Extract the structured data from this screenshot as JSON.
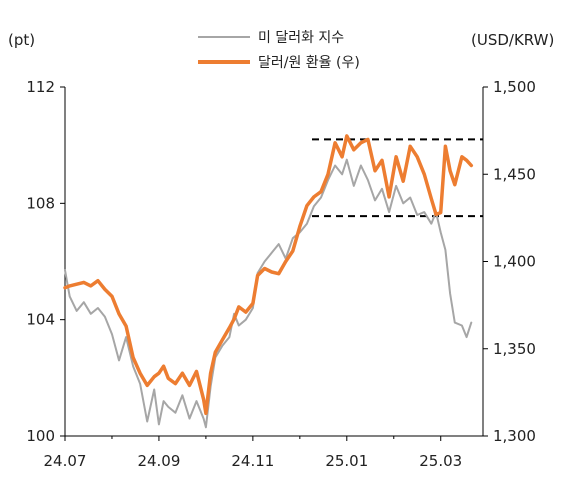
{
  "chart_data": {
    "type": "line",
    "left_unit": "(pt)",
    "right_unit": "(USD/KRW)",
    "x_tick_labels": [
      "24.07",
      "24.09",
      "24.11",
      "25.01",
      "25.03"
    ],
    "y_left_ticks": [
      "112",
      "108",
      "104",
      "100"
    ],
    "y_right_ticks": [
      "1,500",
      "1,450",
      "1,400",
      "1,350",
      "1,300"
    ],
    "ylim_left": [
      100,
      112
    ],
    "ylim_right": [
      1300,
      1500
    ],
    "legend_position": "top-center",
    "reference_lines_right_axis": [
      1470,
      1426
    ],
    "x_range_months": [
      0,
      8.9
    ],
    "series": [
      {
        "name": "미 달러화 지수",
        "axis": "left",
        "color": "#a6a6a6",
        "x": [
          0,
          0.1,
          0.25,
          0.4,
          0.55,
          0.7,
          0.85,
          1.0,
          1.15,
          1.3,
          1.45,
          1.6,
          1.75,
          1.9,
          2.0,
          2.1,
          2.2,
          2.35,
          2.5,
          2.65,
          2.8,
          2.95,
          3.0,
          3.1,
          3.2,
          3.35,
          3.5,
          3.6,
          3.7,
          3.85,
          4.0,
          4.1,
          4.25,
          4.4,
          4.55,
          4.7,
          4.85,
          5.0,
          5.15,
          5.3,
          5.45,
          5.6,
          5.75,
          5.9,
          6.0,
          6.15,
          6.3,
          6.45,
          6.6,
          6.75,
          6.9,
          7.05,
          7.2,
          7.35,
          7.5,
          7.65,
          7.8,
          7.9,
          8.0,
          8.1,
          8.2,
          8.3,
          8.45,
          8.55,
          8.65
        ],
        "values": [
          105.7,
          104.8,
          104.3,
          104.6,
          104.2,
          104.4,
          104.1,
          103.5,
          102.6,
          103.4,
          102.4,
          101.8,
          100.5,
          101.6,
          100.4,
          101.2,
          101.0,
          100.8,
          101.4,
          100.6,
          101.2,
          100.6,
          100.3,
          101.7,
          102.7,
          103.1,
          103.4,
          104.2,
          103.8,
          104.0,
          104.4,
          105.6,
          106.0,
          106.3,
          106.6,
          106.1,
          106.8,
          107.0,
          107.3,
          107.9,
          108.2,
          108.8,
          109.3,
          109.0,
          109.5,
          108.6,
          109.3,
          108.8,
          108.1,
          108.5,
          107.7,
          108.6,
          108.0,
          108.2,
          107.6,
          107.7,
          107.3,
          107.7,
          107.0,
          106.4,
          104.9,
          103.9,
          103.8,
          103.4,
          103.9
        ]
      },
      {
        "name": "달러/원 환율 (우)",
        "axis": "right",
        "color": "#ed7d31",
        "x": [
          0,
          0.1,
          0.25,
          0.4,
          0.55,
          0.7,
          0.85,
          1.0,
          1.15,
          1.3,
          1.45,
          1.6,
          1.75,
          1.9,
          2.0,
          2.1,
          2.2,
          2.35,
          2.5,
          2.65,
          2.8,
          2.95,
          3.0,
          3.1,
          3.2,
          3.35,
          3.5,
          3.6,
          3.7,
          3.85,
          4.0,
          4.1,
          4.25,
          4.4,
          4.55,
          4.7,
          4.85,
          5.0,
          5.15,
          5.3,
          5.45,
          5.6,
          5.75,
          5.9,
          6.0,
          6.15,
          6.3,
          6.45,
          6.6,
          6.75,
          6.9,
          7.05,
          7.2,
          7.35,
          7.5,
          7.65,
          7.8,
          7.9,
          8.0,
          8.1,
          8.2,
          8.3,
          8.45,
          8.55,
          8.65
        ],
        "values": [
          1385,
          1386,
          1387,
          1388,
          1386,
          1389,
          1384,
          1380,
          1370,
          1363,
          1345,
          1336,
          1329,
          1334,
          1336,
          1340,
          1333,
          1330,
          1336,
          1329,
          1337,
          1321,
          1313,
          1336,
          1348,
          1355,
          1362,
          1367,
          1374,
          1371,
          1376,
          1392,
          1396,
          1394,
          1393,
          1400,
          1406,
          1420,
          1432,
          1437,
          1440,
          1450,
          1468,
          1460,
          1472,
          1464,
          1468,
          1470,
          1452,
          1458,
          1437,
          1460,
          1446,
          1466,
          1460,
          1450,
          1436,
          1427,
          1428,
          1466,
          1452,
          1444,
          1460,
          1458,
          1455
        ]
      }
    ]
  }
}
